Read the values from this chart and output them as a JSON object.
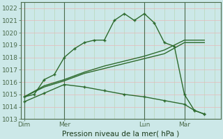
{
  "xlabel": "Pression niveau de la mer( hPa )",
  "ylim": [
    1013,
    1022.5
  ],
  "yticks": [
    1013,
    1014,
    1015,
    1016,
    1017,
    1018,
    1019,
    1020,
    1021,
    1022
  ],
  "bg_color": "#cce8e8",
  "grid_color_h": "#e8b8b8",
  "grid_color_v": "#b8d8b8",
  "line_color": "#2d6a2d",
  "xtick_labels": [
    "Dim",
    "Mer",
    "Lun",
    "Mar"
  ],
  "xtick_positions": [
    0,
    24,
    72,
    96
  ],
  "x_vlines": [
    0,
    24,
    72,
    96
  ],
  "xlim": [
    -2,
    118
  ],
  "series1_x": [
    0,
    6,
    12,
    18,
    24,
    30,
    36,
    42,
    48,
    54,
    60,
    66,
    72,
    78,
    84,
    90,
    96,
    102,
    108
  ],
  "series1_y": [
    1014.8,
    1015.0,
    1016.2,
    1016.6,
    1018.0,
    1018.7,
    1019.2,
    1019.4,
    1019.4,
    1021.0,
    1021.55,
    1021.0,
    1021.55,
    1020.8,
    1019.2,
    1018.9,
    1015.0,
    1013.7,
    1013.4
  ],
  "series2_x": [
    0,
    12,
    24,
    36,
    48,
    60,
    72,
    84,
    96,
    108
  ],
  "series2_y": [
    1014.8,
    1015.6,
    1016.1,
    1016.7,
    1017.1,
    1017.5,
    1017.9,
    1018.3,
    1019.2,
    1019.2
  ],
  "series3_x": [
    0,
    12,
    24,
    36,
    48,
    60,
    72,
    84,
    96,
    108
  ],
  "series3_y": [
    1014.8,
    1015.7,
    1016.2,
    1016.8,
    1017.3,
    1017.7,
    1018.1,
    1018.6,
    1019.4,
    1019.4
  ],
  "series4_x": [
    0,
    12,
    24,
    36,
    48,
    60,
    72,
    84,
    96,
    102,
    108
  ],
  "series4_y": [
    1014.4,
    1015.1,
    1015.8,
    1015.6,
    1015.3,
    1015.0,
    1014.8,
    1014.5,
    1014.2,
    1013.7,
    1013.4
  ],
  "figsize": [
    3.2,
    2.0
  ],
  "dpi": 100
}
